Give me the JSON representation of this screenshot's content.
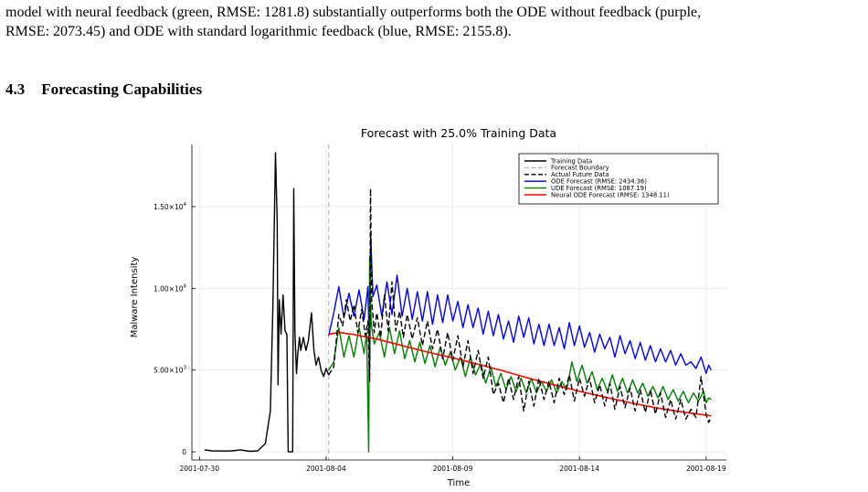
{
  "text": {
    "paragraph_lines": [
      "model with neural feedback (green, RMSE: 1281.8) substantially outperforms both the ODE without feedback (purple,",
      "RMSE: 2073.45) and ODE with standard logarithmic feedback (blue, RMSE: 2155.8)."
    ],
    "section_number": "4.3",
    "section_title": "Forecasting Capabilities"
  },
  "chart_data": {
    "type": "line",
    "title": "Forecast with 25.0% Training Data",
    "xlabel": "Time",
    "ylabel": "Malware Intensity",
    "x_tick_labels": [
      "2001-07-30",
      "2001-08-04",
      "2001-08-09",
      "2001-08-14",
      "2001-08-19"
    ],
    "x_tick_days": [
      0,
      5,
      10,
      15,
      20
    ],
    "xlim_days": [
      -0.3,
      20.8
    ],
    "y_ticks": [
      {
        "value": 0,
        "mantissa": "0",
        "exp": ""
      },
      {
        "value": 5000,
        "mantissa": "5.00×10",
        "exp": "3"
      },
      {
        "value": 10000,
        "mantissa": "1.00×10",
        "exp": "4"
      },
      {
        "value": 15000,
        "mantissa": "1.50×10",
        "exp": "4"
      }
    ],
    "ylim": [
      -500,
      18800
    ],
    "grid": true,
    "legend_position": "top-right",
    "forecast_boundary_day": 5.1,
    "series": [
      {
        "name": "Training Data",
        "color": "#000000",
        "dash": "solid",
        "points": [
          [
            0.2,
            120
          ],
          [
            0.5,
            60
          ],
          [
            1,
            50
          ],
          [
            1.3,
            60
          ],
          [
            1.6,
            120
          ],
          [
            2,
            30
          ],
          [
            2.3,
            60
          ],
          [
            2.6,
            500
          ],
          [
            2.8,
            2500
          ],
          [
            2.9,
            9000
          ],
          [
            3.0,
            18300
          ],
          [
            3.07,
            14000
          ],
          [
            3.1,
            4100
          ],
          [
            3.15,
            9300
          ],
          [
            3.22,
            7200
          ],
          [
            3.3,
            9600
          ],
          [
            3.38,
            7400
          ],
          [
            3.45,
            7200
          ],
          [
            3.5,
            0
          ],
          [
            3.68,
            0
          ],
          [
            3.72,
            16100
          ],
          [
            3.77,
            7300
          ],
          [
            3.83,
            4800
          ],
          [
            3.88,
            6000
          ],
          [
            3.95,
            7000
          ],
          [
            4.0,
            6200
          ],
          [
            4.1,
            7000
          ],
          [
            4.2,
            6200
          ],
          [
            4.3,
            6800
          ],
          [
            4.42,
            8500
          ],
          [
            4.52,
            6200
          ],
          [
            4.6,
            5300
          ],
          [
            4.7,
            5800
          ],
          [
            4.8,
            5000
          ],
          [
            4.9,
            4600
          ],
          [
            5.0,
            5100
          ],
          [
            5.1,
            4700
          ]
        ]
      },
      {
        "name": "Forecast Boundary",
        "color": "#b8b8b8",
        "dash": "dashed",
        "points": []
      },
      {
        "name": "Actual Future Data",
        "color": "#000000",
        "dash": "dashed",
        "points": [
          [
            5.1,
            4700
          ],
          [
            5.3,
            5200
          ],
          [
            5.5,
            8400
          ],
          [
            5.65,
            7700
          ],
          [
            5.8,
            9300
          ],
          [
            5.95,
            8000
          ],
          [
            6.1,
            9000
          ],
          [
            6.25,
            7300
          ],
          [
            6.4,
            8700
          ],
          [
            6.55,
            7100
          ],
          [
            6.65,
            8000
          ],
          [
            6.72,
            4300
          ],
          [
            6.75,
            16100
          ],
          [
            6.8,
            9300
          ],
          [
            6.9,
            7300
          ],
          [
            7.0,
            8500
          ],
          [
            7.15,
            7000
          ],
          [
            7.3,
            9600
          ],
          [
            7.45,
            7400
          ],
          [
            7.6,
            10400
          ],
          [
            7.75,
            7400
          ],
          [
            7.9,
            8600
          ],
          [
            8.05,
            7000
          ],
          [
            8.2,
            8400
          ],
          [
            8.4,
            6900
          ],
          [
            8.6,
            8200
          ],
          [
            8.8,
            6500
          ],
          [
            9.0,
            8000
          ],
          [
            9.2,
            6300
          ],
          [
            9.4,
            7500
          ],
          [
            9.6,
            5700
          ],
          [
            9.8,
            7300
          ],
          [
            10.0,
            5600
          ],
          [
            10.2,
            7100
          ],
          [
            10.4,
            5200
          ],
          [
            10.6,
            6800
          ],
          [
            10.8,
            4800
          ],
          [
            11.0,
            6200
          ],
          [
            11.2,
            4500
          ],
          [
            11.4,
            5800
          ],
          [
            11.6,
            3500
          ],
          [
            11.8,
            4200
          ],
          [
            12.0,
            3000
          ],
          [
            12.2,
            4500
          ],
          [
            12.4,
            3200
          ],
          [
            12.6,
            4600
          ],
          [
            12.8,
            2500
          ],
          [
            13.0,
            4300
          ],
          [
            13.2,
            2800
          ],
          [
            13.4,
            4500
          ],
          [
            13.6,
            3200
          ],
          [
            13.8,
            4300
          ],
          [
            14.0,
            3000
          ],
          [
            14.2,
            4500
          ],
          [
            14.4,
            3500
          ],
          [
            14.6,
            4700
          ],
          [
            14.8,
            3100
          ],
          [
            15.0,
            4500
          ],
          [
            15.2,
            3400
          ],
          [
            15.4,
            4500
          ],
          [
            15.6,
            3000
          ],
          [
            15.8,
            4100
          ],
          [
            16.0,
            2800
          ],
          [
            16.2,
            4200
          ],
          [
            16.4,
            2600
          ],
          [
            16.6,
            4000
          ],
          [
            16.8,
            2700
          ],
          [
            17.0,
            3900
          ],
          [
            17.2,
            2500
          ],
          [
            17.4,
            3800
          ],
          [
            17.6,
            2400
          ],
          [
            17.8,
            3800
          ],
          [
            18.0,
            2300
          ],
          [
            18.2,
            3600
          ],
          [
            18.4,
            2100
          ],
          [
            18.6,
            3200
          ],
          [
            18.8,
            2000
          ],
          [
            19.0,
            3200
          ],
          [
            19.2,
            2000
          ],
          [
            19.4,
            2600
          ],
          [
            19.6,
            2100
          ],
          [
            19.8,
            4600
          ],
          [
            20.0,
            2300
          ],
          [
            20.1,
            1800
          ],
          [
            20.2,
            2100
          ]
        ]
      },
      {
        "name": "ODE Forecast (RMSE: 2434.36)",
        "color": "#0000ff",
        "dash": "solid",
        "points": [
          [
            5.1,
            7100
          ],
          [
            5.3,
            8500
          ],
          [
            5.5,
            10100
          ],
          [
            5.7,
            8200
          ],
          [
            5.9,
            9700
          ],
          [
            6.1,
            8300
          ],
          [
            6.3,
            9900
          ],
          [
            6.5,
            8100
          ],
          [
            6.65,
            10100
          ],
          [
            6.72,
            5000
          ],
          [
            6.76,
            13200
          ],
          [
            6.85,
            9500
          ],
          [
            7.0,
            10200
          ],
          [
            7.2,
            8300
          ],
          [
            7.4,
            10400
          ],
          [
            7.6,
            8400
          ],
          [
            7.8,
            10800
          ],
          [
            8.0,
            8300
          ],
          [
            8.2,
            10000
          ],
          [
            8.4,
            8100
          ],
          [
            8.6,
            9800
          ],
          [
            8.8,
            8000
          ],
          [
            9.0,
            9800
          ],
          [
            9.2,
            7800
          ],
          [
            9.4,
            9600
          ],
          [
            9.6,
            7900
          ],
          [
            9.8,
            9600
          ],
          [
            10.0,
            8000
          ],
          [
            10.2,
            9200
          ],
          [
            10.4,
            7600
          ],
          [
            10.6,
            9000
          ],
          [
            10.8,
            7600
          ],
          [
            11.0,
            8800
          ],
          [
            11.2,
            7200
          ],
          [
            11.4,
            8600
          ],
          [
            11.6,
            7100
          ],
          [
            11.8,
            8400
          ],
          [
            12.0,
            6900
          ],
          [
            12.2,
            8000
          ],
          [
            12.4,
            6700
          ],
          [
            12.6,
            8300
          ],
          [
            12.8,
            7000
          ],
          [
            13.0,
            8200
          ],
          [
            13.2,
            6600
          ],
          [
            13.4,
            7800
          ],
          [
            13.6,
            6500
          ],
          [
            13.8,
            7800
          ],
          [
            14.0,
            6500
          ],
          [
            14.2,
            7600
          ],
          [
            14.4,
            6300
          ],
          [
            14.6,
            7900
          ],
          [
            14.8,
            6500
          ],
          [
            15.0,
            7700
          ],
          [
            15.2,
            6400
          ],
          [
            15.4,
            7300
          ],
          [
            15.6,
            6100
          ],
          [
            15.8,
            7200
          ],
          [
            16.0,
            6300
          ],
          [
            16.2,
            7000
          ],
          [
            16.4,
            5800
          ],
          [
            16.6,
            7100
          ],
          [
            16.8,
            6000
          ],
          [
            17.0,
            6800
          ],
          [
            17.2,
            5700
          ],
          [
            17.4,
            6700
          ],
          [
            17.6,
            5600
          ],
          [
            17.8,
            6500
          ],
          [
            18.0,
            5500
          ],
          [
            18.2,
            6300
          ],
          [
            18.4,
            5500
          ],
          [
            18.6,
            6200
          ],
          [
            18.8,
            5300
          ],
          [
            19.0,
            6000
          ],
          [
            19.2,
            5300
          ],
          [
            19.4,
            5500
          ],
          [
            19.6,
            5100
          ],
          [
            19.8,
            5800
          ],
          [
            20.0,
            4800
          ],
          [
            20.1,
            5300
          ],
          [
            20.2,
            5000
          ]
        ]
      },
      {
        "name": "UDE Forecast (RMSE: 1087.19)",
        "color": "#008000",
        "dash": "solid",
        "points": [
          [
            5.1,
            5000
          ],
          [
            5.3,
            5500
          ],
          [
            5.5,
            7600
          ],
          [
            5.7,
            5800
          ],
          [
            5.9,
            7100
          ],
          [
            6.1,
            5800
          ],
          [
            6.3,
            7600
          ],
          [
            6.5,
            6000
          ],
          [
            6.6,
            7300
          ],
          [
            6.68,
            0
          ],
          [
            6.72,
            12000
          ],
          [
            6.78,
            7800
          ],
          [
            6.9,
            6600
          ],
          [
            7.1,
            7300
          ],
          [
            7.3,
            5800
          ],
          [
            7.5,
            7600
          ],
          [
            7.7,
            6000
          ],
          [
            7.9,
            7400
          ],
          [
            8.1,
            5700
          ],
          [
            8.3,
            6800
          ],
          [
            8.5,
            5500
          ],
          [
            8.7,
            6700
          ],
          [
            8.9,
            5400
          ],
          [
            9.1,
            6500
          ],
          [
            9.3,
            5200
          ],
          [
            9.5,
            6400
          ],
          [
            9.7,
            5300
          ],
          [
            9.9,
            6100
          ],
          [
            10.1,
            5000
          ],
          [
            10.3,
            5800
          ],
          [
            10.5,
            4600
          ],
          [
            10.7,
            5800
          ],
          [
            10.9,
            4700
          ],
          [
            11.1,
            5400
          ],
          [
            11.3,
            4200
          ],
          [
            11.5,
            5200
          ],
          [
            11.7,
            4000
          ],
          [
            11.9,
            4800
          ],
          [
            12.1,
            3800
          ],
          [
            12.3,
            4600
          ],
          [
            12.5,
            3700
          ],
          [
            12.7,
            4500
          ],
          [
            12.9,
            3600
          ],
          [
            13.1,
            4500
          ],
          [
            13.3,
            3600
          ],
          [
            13.5,
            4300
          ],
          [
            13.7,
            3700
          ],
          [
            13.9,
            4400
          ],
          [
            14.1,
            3600
          ],
          [
            14.3,
            4300
          ],
          [
            14.5,
            3800
          ],
          [
            14.7,
            5500
          ],
          [
            14.9,
            4300
          ],
          [
            15.1,
            5300
          ],
          [
            15.3,
            4200
          ],
          [
            15.5,
            4900
          ],
          [
            15.7,
            3800
          ],
          [
            15.9,
            4500
          ],
          [
            16.1,
            3700
          ],
          [
            16.3,
            4700
          ],
          [
            16.5,
            3700
          ],
          [
            16.7,
            4500
          ],
          [
            16.9,
            3600
          ],
          [
            17.1,
            4400
          ],
          [
            17.3,
            3600
          ],
          [
            17.5,
            4200
          ],
          [
            17.7,
            3400
          ],
          [
            17.9,
            4000
          ],
          [
            18.1,
            3300
          ],
          [
            18.3,
            4000
          ],
          [
            18.5,
            3200
          ],
          [
            18.7,
            3800
          ],
          [
            18.9,
            3100
          ],
          [
            19.1,
            3700
          ],
          [
            19.3,
            3000
          ],
          [
            19.5,
            3600
          ],
          [
            19.7,
            3100
          ],
          [
            19.9,
            3700
          ],
          [
            20.0,
            3000
          ],
          [
            20.1,
            3300
          ],
          [
            20.2,
            3200
          ]
        ]
      },
      {
        "name": "Neural ODE Forecast (RMSE: 1348.11)",
        "color": "#ff0000",
        "dash": "solid",
        "points": [
          [
            5.1,
            7200
          ],
          [
            5.5,
            7300
          ],
          [
            6,
            7200
          ],
          [
            7,
            6900
          ],
          [
            8,
            6500
          ],
          [
            9,
            6100
          ],
          [
            10,
            5750
          ],
          [
            11,
            5350
          ],
          [
            12,
            4950
          ],
          [
            13,
            4500
          ],
          [
            14,
            4100
          ],
          [
            15,
            3700
          ],
          [
            16,
            3350
          ],
          [
            17,
            3000
          ],
          [
            18,
            2700
          ],
          [
            19,
            2450
          ],
          [
            20.2,
            2200
          ]
        ]
      }
    ]
  }
}
